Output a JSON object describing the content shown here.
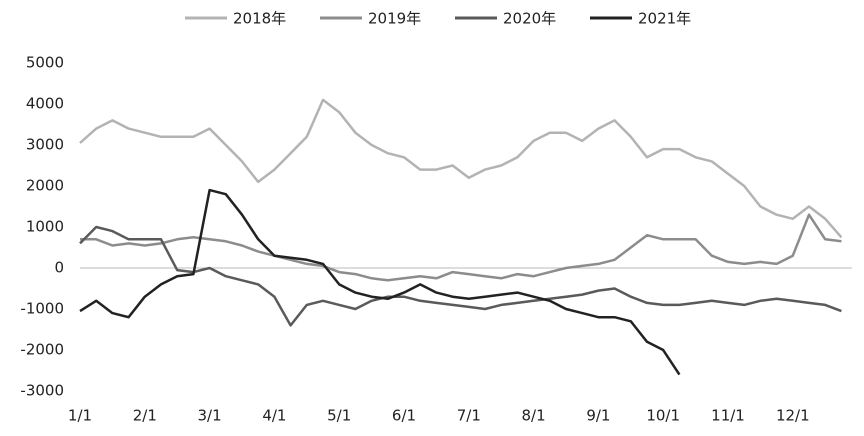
{
  "chart_data": {
    "type": "line",
    "categories": [
      "1/1",
      null,
      null,
      null,
      "2/1",
      null,
      null,
      null,
      "3/1",
      null,
      null,
      null,
      "4/1",
      null,
      null,
      null,
      "5/1",
      null,
      null,
      null,
      "6/1",
      null,
      null,
      null,
      "7/1",
      null,
      null,
      null,
      "8/1",
      null,
      null,
      null,
      "9/1",
      null,
      null,
      null,
      "10/1",
      null,
      null,
      null,
      "11/1",
      null,
      null,
      null,
      "12/1",
      null,
      null,
      null
    ],
    "series": [
      {
        "name": "2018年",
        "color": "#b3b3b3",
        "values": [
          3050,
          3400,
          3600,
          3400,
          3300,
          3200,
          3200,
          3200,
          3400,
          3000,
          2600,
          2100,
          2400,
          2800,
          3200,
          4100,
          3800,
          3300,
          3000,
          2800,
          2700,
          2400,
          2400,
          2500,
          2200,
          2400,
          2500,
          2700,
          3100,
          3300,
          3300,
          3100,
          3400,
          3600,
          3200,
          2700,
          2900,
          2900,
          2700,
          2600,
          2300,
          2000,
          1500,
          1300,
          1200,
          1500,
          1200,
          750
        ]
      },
      {
        "name": "2019年",
        "color": "#8c8c8c",
        "values": [
          700,
          700,
          550,
          600,
          550,
          600,
          700,
          750,
          700,
          650,
          550,
          400,
          300,
          200,
          100,
          50,
          -100,
          -150,
          -250,
          -300,
          -250,
          -200,
          -250,
          -100,
          -150,
          -200,
          -250,
          -150,
          -200,
          -100,
          0,
          50,
          100,
          200,
          500,
          800,
          700,
          700,
          700,
          300,
          150,
          100,
          150,
          100,
          300,
          1300,
          700,
          650
        ]
      },
      {
        "name": "2020年",
        "color": "#5a5a5a",
        "values": [
          600,
          1000,
          900,
          700,
          700,
          700,
          -50,
          -100,
          0,
          -200,
          -300,
          -400,
          -700,
          -1400,
          -900,
          -800,
          -900,
          -1000,
          -800,
          -700,
          -700,
          -800,
          -850,
          -900,
          -950,
          -1000,
          -900,
          -850,
          -800,
          -750,
          -700,
          -650,
          -550,
          -500,
          -700,
          -850,
          -900,
          -900,
          -850,
          -800,
          -850,
          -900,
          -800,
          -750,
          -800,
          -850,
          -900,
          -1050
        ]
      },
      {
        "name": "2021年",
        "color": "#222222",
        "values": [
          -1050,
          -800,
          -1100,
          -1200,
          -700,
          -400,
          -200,
          -150,
          1900,
          1800,
          1300,
          700,
          300,
          250,
          200,
          100,
          -400,
          -600,
          -700,
          -750,
          -600,
          -400,
          -600,
          -700,
          -750,
          -700,
          -650,
          -600,
          -700,
          -800,
          -1000,
          -1100,
          -1200,
          -1200,
          -1300,
          -1800,
          -2000,
          -2600,
          null,
          null,
          null,
          null,
          null,
          null,
          null,
          null,
          null,
          null
        ]
      }
    ],
    "ylim": [
      -3000,
      5000
    ],
    "yticks": [
      5000,
      4000,
      3000,
      2000,
      1000,
      0,
      -1000,
      -2000,
      -3000
    ],
    "legend": "top"
  }
}
